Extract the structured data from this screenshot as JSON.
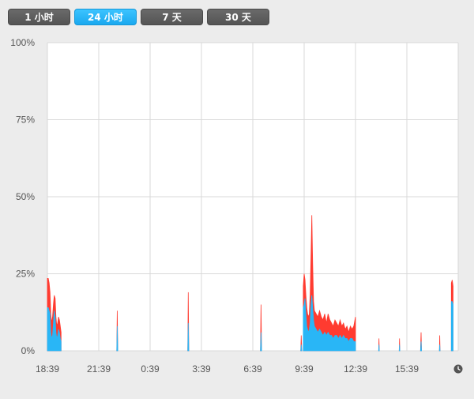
{
  "controls": {
    "ranges": [
      "1 小时",
      "24 小时",
      "7 天",
      "30 天"
    ],
    "selected": "24 小时"
  },
  "icons": {
    "clock": "clock-icon"
  },
  "colors": {
    "accent": "#1aa8ef",
    "series_user": "#29b6f6",
    "series_system": "#ff3b30",
    "grid": "#d9d9d9",
    "plot_bg": "#ffffff"
  },
  "chart_data": {
    "type": "area",
    "stacked": true,
    "title": "",
    "xlabel": "",
    "ylabel": "",
    "ylim": [
      0,
      100
    ],
    "y_ticks": [
      "0%",
      "25%",
      "50%",
      "75%",
      "100%"
    ],
    "x_ticks": [
      "18:39",
      "21:39",
      "0:39",
      "3:39",
      "6:39",
      "9:39",
      "12:39",
      "15:39"
    ],
    "x_tick_hours": [
      0,
      3,
      6,
      9,
      12,
      15,
      18,
      21
    ],
    "x_range_hours": [
      0,
      24
    ],
    "grid": true,
    "legend": "none",
    "series": [
      {
        "color": "#29b6f6",
        "segments": [
          [
            [
              0.0,
              14
            ],
            [
              0.05,
              14
            ],
            [
              0.1,
              13
            ],
            [
              0.15,
              12
            ],
            [
              0.2,
              6
            ],
            [
              0.25,
              4
            ],
            [
              0.3,
              5
            ],
            [
              0.35,
              9
            ],
            [
              0.4,
              13
            ],
            [
              0.45,
              11
            ],
            [
              0.5,
              6
            ],
            [
              0.55,
              4
            ],
            [
              0.6,
              5
            ],
            [
              0.65,
              7
            ],
            [
              0.7,
              6
            ],
            [
              0.75,
              4
            ],
            [
              0.8,
              3
            ]
          ],
          [
            [
              4.05,
              0
            ],
            [
              4.08,
              8
            ],
            [
              4.11,
              0
            ]
          ],
          [
            [
              8.2,
              0
            ],
            [
              8.23,
              9
            ],
            [
              8.26,
              0
            ]
          ],
          [
            [
              12.45,
              0
            ],
            [
              12.48,
              6
            ],
            [
              12.51,
              0
            ]
          ],
          [
            [
              14.8,
              0
            ],
            [
              14.83,
              2
            ],
            [
              14.86,
              0
            ]
          ],
          [
            [
              14.95,
              14
            ],
            [
              15.0,
              15
            ],
            [
              15.05,
              17
            ],
            [
              15.1,
              12
            ],
            [
              15.15,
              8
            ],
            [
              15.2,
              7
            ],
            [
              15.25,
              6
            ],
            [
              15.3,
              7
            ],
            [
              15.35,
              9
            ],
            [
              15.4,
              15
            ],
            [
              15.45,
              18
            ],
            [
              15.5,
              14
            ],
            [
              15.55,
              10
            ],
            [
              15.6,
              8
            ],
            [
              15.7,
              7
            ],
            [
              15.8,
              6
            ],
            [
              15.9,
              7
            ],
            [
              16.0,
              6
            ],
            [
              16.1,
              5
            ],
            [
              16.2,
              6
            ],
            [
              16.3,
              5
            ],
            [
              16.4,
              6
            ],
            [
              16.5,
              5
            ],
            [
              16.6,
              5
            ],
            [
              16.7,
              4
            ],
            [
              16.8,
              5
            ],
            [
              16.9,
              5
            ],
            [
              17.0,
              4
            ],
            [
              17.1,
              5
            ],
            [
              17.2,
              4
            ],
            [
              17.3,
              5
            ],
            [
              17.4,
              4
            ],
            [
              17.5,
              4
            ],
            [
              17.6,
              3
            ],
            [
              17.7,
              4
            ],
            [
              17.8,
              4
            ],
            [
              17.9,
              3
            ],
            [
              18.0,
              3
            ]
          ],
          [
            [
              19.35,
              0
            ],
            [
              19.37,
              2
            ],
            [
              19.39,
              0
            ]
          ],
          [
            [
              20.55,
              0
            ],
            [
              20.57,
              2
            ],
            [
              20.59,
              0
            ]
          ],
          [
            [
              21.8,
              0
            ],
            [
              21.83,
              3
            ],
            [
              21.86,
              0
            ]
          ],
          [
            [
              22.9,
              0
            ],
            [
              22.92,
              2
            ],
            [
              22.94,
              0
            ]
          ],
          [
            [
              23.6,
              16
            ],
            [
              23.65,
              16
            ],
            [
              23.7,
              15
            ]
          ]
        ]
      },
      {
        "color": "#ff3b30",
        "segments": [
          [
            [
              0.0,
              23.5
            ],
            [
              0.05,
              23.5
            ],
            [
              0.1,
              22
            ],
            [
              0.15,
              19
            ],
            [
              0.2,
              12
            ],
            [
              0.25,
              9
            ],
            [
              0.3,
              11
            ],
            [
              0.35,
              15
            ],
            [
              0.4,
              18
            ],
            [
              0.45,
              17
            ],
            [
              0.5,
              11
            ],
            [
              0.55,
              8
            ],
            [
              0.6,
              9
            ],
            [
              0.65,
              11
            ],
            [
              0.7,
              10
            ],
            [
              0.75,
              8
            ],
            [
              0.8,
              6
            ]
          ],
          [
            [
              4.05,
              0
            ],
            [
              4.08,
              13
            ],
            [
              4.11,
              0
            ]
          ],
          [
            [
              8.2,
              0
            ],
            [
              8.23,
              19
            ],
            [
              8.26,
              0
            ]
          ],
          [
            [
              12.45,
              0
            ],
            [
              12.48,
              15
            ],
            [
              12.51,
              0
            ]
          ],
          [
            [
              14.8,
              0
            ],
            [
              14.83,
              5
            ],
            [
              14.86,
              0
            ]
          ],
          [
            [
              14.95,
              21
            ],
            [
              15.0,
              25
            ],
            [
              15.05,
              23
            ],
            [
              15.1,
              18
            ],
            [
              15.15,
              14
            ],
            [
              15.2,
              12
            ],
            [
              15.25,
              11
            ],
            [
              15.3,
              12
            ],
            [
              15.35,
              18
            ],
            [
              15.4,
              31
            ],
            [
              15.45,
              44
            ],
            [
              15.5,
              28
            ],
            [
              15.55,
              16
            ],
            [
              15.6,
              13
            ],
            [
              15.7,
              12
            ],
            [
              15.8,
              11
            ],
            [
              15.9,
              13
            ],
            [
              16.0,
              11
            ],
            [
              16.1,
              10
            ],
            [
              16.2,
              12
            ],
            [
              16.3,
              9
            ],
            [
              16.4,
              12
            ],
            [
              16.5,
              10
            ],
            [
              16.6,
              9
            ],
            [
              16.7,
              8
            ],
            [
              16.8,
              10
            ],
            [
              16.9,
              9
            ],
            [
              17.0,
              8
            ],
            [
              17.1,
              10
            ],
            [
              17.2,
              8
            ],
            [
              17.3,
              9
            ],
            [
              17.4,
              7
            ],
            [
              17.5,
              8
            ],
            [
              17.6,
              6
            ],
            [
              17.7,
              8
            ],
            [
              17.8,
              7
            ],
            [
              17.9,
              8
            ],
            [
              18.0,
              11
            ]
          ],
          [
            [
              19.35,
              0
            ],
            [
              19.37,
              4
            ],
            [
              19.39,
              0
            ]
          ],
          [
            [
              20.55,
              0
            ],
            [
              20.57,
              4
            ],
            [
              20.59,
              0
            ]
          ],
          [
            [
              21.8,
              0
            ],
            [
              21.83,
              6
            ],
            [
              21.86,
              0
            ]
          ],
          [
            [
              22.9,
              0
            ],
            [
              22.92,
              5
            ],
            [
              22.94,
              0
            ]
          ],
          [
            [
              23.6,
              22
            ],
            [
              23.65,
              23
            ],
            [
              23.7,
              21
            ]
          ]
        ]
      }
    ]
  }
}
